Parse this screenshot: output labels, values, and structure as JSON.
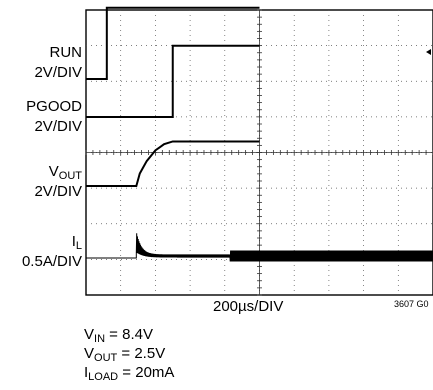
{
  "chart_data": {
    "type": "line",
    "title": "",
    "xlabel": "200µs/DIV",
    "time_per_div_us": 200,
    "x_divisions": 10,
    "y_divisions": 8,
    "grid": true,
    "channels": [
      {
        "name": "RUN",
        "scale": "2V/DIV",
        "low_v": 0,
        "high_v": 4,
        "transition_us": 120,
        "points": [
          [
            0,
            0
          ],
          [
            120,
            0
          ],
          [
            120,
            4
          ],
          [
            1000,
            4
          ]
        ]
      },
      {
        "name": "PGOOD",
        "scale": "2V/DIV",
        "low_v": 0,
        "high_v": 4,
        "transition_us": 500,
        "points": [
          [
            0,
            0
          ],
          [
            500,
            0
          ],
          [
            500,
            4
          ],
          [
            1000,
            4
          ]
        ]
      },
      {
        "name": "VOUT",
        "name_sub": "OUT",
        "name_main": "V",
        "scale": "2V/DIV",
        "points": [
          [
            0,
            0
          ],
          [
            290,
            0
          ],
          [
            310,
            0.7
          ],
          [
            350,
            1.4
          ],
          [
            400,
            2.0
          ],
          [
            450,
            2.35
          ],
          [
            500,
            2.5
          ],
          [
            1000,
            2.5
          ]
        ]
      },
      {
        "name": "IL",
        "name_sub": "L",
        "name_main": "I",
        "scale": "0.5A/DIV",
        "points": [
          [
            0,
            0
          ],
          [
            290,
            0
          ],
          [
            300,
            1.1
          ],
          [
            330,
            0.5
          ],
          [
            380,
            0.25
          ],
          [
            1000,
            0.2
          ]
        ],
        "note": "ripple present throughout; larger ripple burst after ~830µs"
      }
    ]
  },
  "labels": {
    "run": "RUN",
    "run_scale": "2V/DIV",
    "pgood": "PGOOD",
    "pgood_scale": "2V/DIV",
    "vout_main": "V",
    "vout_sub": "OUT",
    "vout_scale": "2V/DIV",
    "il_main": "I",
    "il_sub": "L",
    "il_scale": "0.5A/DIV",
    "time_div": "200µs/DIV",
    "figure_id": "3607 G0"
  },
  "conditions": {
    "vin_main": "V",
    "vin_sub": "IN",
    "vin_value": " = 8.4V",
    "vout_main": "V",
    "vout_sub": "OUT",
    "vout_value": " = 2.5V",
    "iload_main": "I",
    "iload_sub": "LOAD",
    "iload_value": " = 20mA"
  }
}
